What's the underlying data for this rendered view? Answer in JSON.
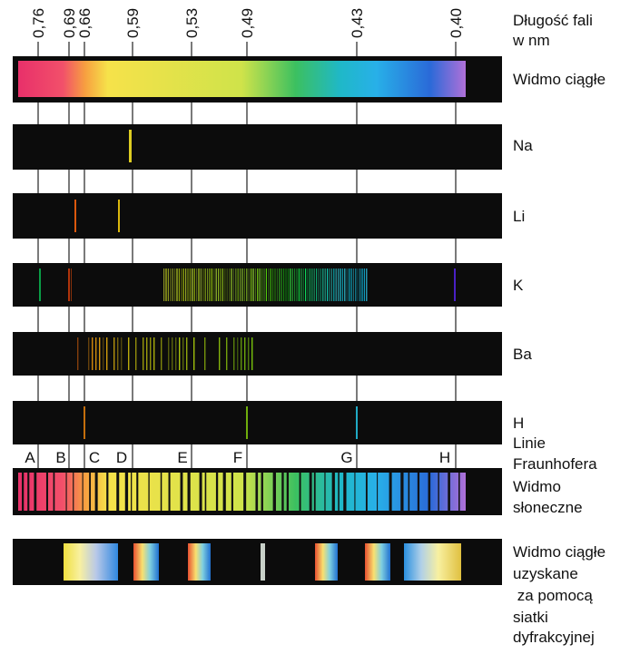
{
  "wavelength": {
    "title_lines": [
      "Długość fali",
      "w nm"
    ],
    "ticks": [
      "0,76",
      "0,69",
      "0,66",
      "0,59",
      "0,53",
      "0,49",
      "0,43",
      "0,40"
    ]
  },
  "spectra": [
    {
      "label": "Widmo ciągłe"
    },
    {
      "label": "Na"
    },
    {
      "label": "Li"
    },
    {
      "label": "K"
    },
    {
      "label": "Ba"
    },
    {
      "label": "H"
    }
  ],
  "fraunhofer": {
    "title_lines": [
      "Linie",
      "Fraunhofera"
    ],
    "letters": [
      "A",
      "B",
      "C",
      "D",
      "E",
      "F",
      "G",
      "H"
    ]
  },
  "solar": {
    "label_lines": [
      "Widmo",
      "słoneczne"
    ]
  },
  "diffraction": {
    "label_lines": [
      "Widmo ciągłe",
      "uzyskane",
      " za pomocą",
      "siatki",
      "dyfrakcyjnej"
    ]
  }
}
